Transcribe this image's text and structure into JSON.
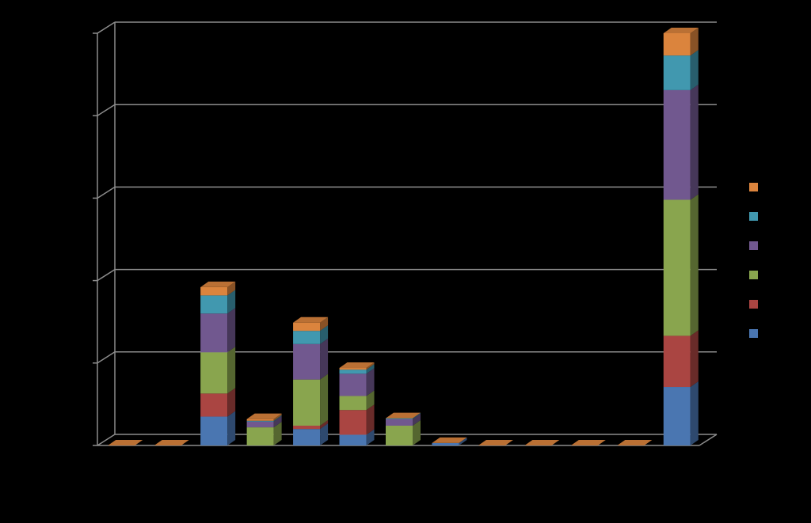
{
  "chart_data": {
    "type": "bar",
    "stacked": true,
    "three_d": true,
    "title": "",
    "xlabel": "",
    "ylabel": "",
    "ylim": [
      0,
      5
    ],
    "grid": true,
    "legend_position": "right",
    "background": "#000000",
    "categories": [
      "",
      "",
      "",
      "",
      "",
      "",
      "",
      "",
      "",
      "",
      "",
      "",
      ""
    ],
    "series": [
      {
        "color": "#4a76b1",
        "values": [
          0,
          0,
          0.35,
          0,
          0.2,
          0.13,
          0,
          0.03,
          0,
          0,
          0,
          0,
          0.71
        ]
      },
      {
        "color": "#aa4542",
        "values": [
          0,
          0,
          0.28,
          0,
          0.04,
          0.3,
          0,
          0,
          0,
          0,
          0,
          0,
          0.62
        ]
      },
      {
        "color": "#89a54e",
        "values": [
          0,
          0,
          0.5,
          0.22,
          0.56,
          0.17,
          0.24,
          0,
          0,
          0,
          0,
          0,
          1.65
        ]
      },
      {
        "color": "#71588f",
        "values": [
          0,
          0,
          0.47,
          0.07,
          0.43,
          0.27,
          0.08,
          0,
          0,
          0,
          0,
          0,
          1.33
        ]
      },
      {
        "color": "#4198af",
        "values": [
          0,
          0,
          0.22,
          0.01,
          0.16,
          0.05,
          0.01,
          0,
          0,
          0,
          0,
          0,
          0.42
        ]
      },
      {
        "color": "#db843d",
        "values": [
          0,
          0,
          0.1,
          0.02,
          0.1,
          0.02,
          0,
          0,
          0,
          0,
          0,
          0,
          0.27
        ]
      }
    ]
  }
}
